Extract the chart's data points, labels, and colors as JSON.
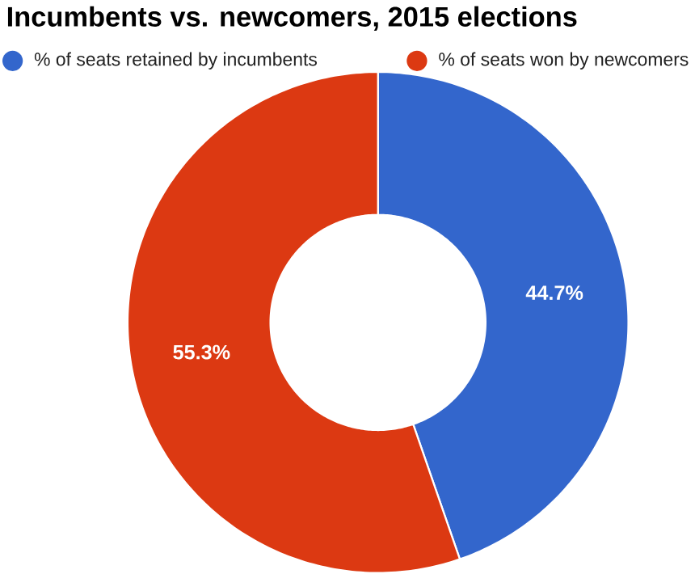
{
  "chart_data": {
    "type": "donut",
    "title": "Incumbents vs. newcomers, 2015 elections",
    "categories": [
      "% of seats retained by incumbents",
      "% of seats won by newcomers"
    ],
    "values": [
      44.7,
      55.3
    ],
    "colors": [
      "#3366cc",
      "#dc3912"
    ],
    "value_labels": [
      "44.7%",
      "55.3%"
    ],
    "legend": "top"
  }
}
